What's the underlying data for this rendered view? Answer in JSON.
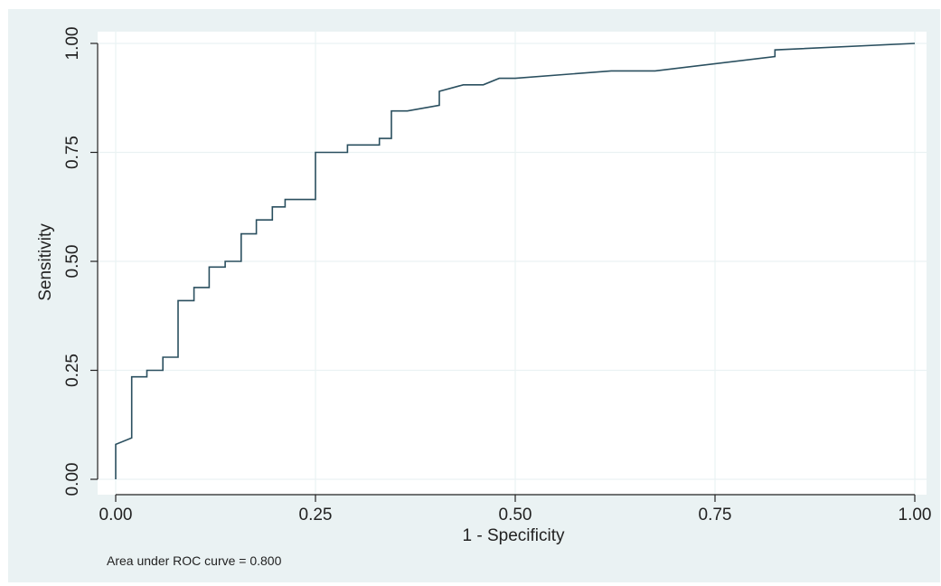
{
  "chart_data": {
    "type": "line",
    "xlabel": "1 - Specificity",
    "ylabel": "Sensitivity",
    "xlim": [
      0,
      1
    ],
    "ylim": [
      0,
      1
    ],
    "x_ticks": [
      0,
      0.25,
      0.5,
      0.75,
      1
    ],
    "y_ticks": [
      0,
      0.25,
      0.5,
      0.75,
      1
    ],
    "x_tick_labels": [
      "0.00",
      "0.25",
      "0.50",
      "0.75",
      "1.00"
    ],
    "y_tick_labels": [
      "0.00",
      "0.25",
      "0.50",
      "0.75",
      "1.00"
    ],
    "grid": true,
    "note": "Area under ROC curve = 0.800",
    "series": [
      {
        "values": [
          [
            0.0,
            0.0
          ],
          [
            0.0,
            0.08
          ],
          [
            0.02,
            0.095
          ],
          [
            0.02,
            0.235
          ],
          [
            0.039,
            0.235
          ],
          [
            0.039,
            0.25
          ],
          [
            0.059,
            0.25
          ],
          [
            0.059,
            0.28
          ],
          [
            0.078,
            0.28
          ],
          [
            0.078,
            0.41
          ],
          [
            0.098,
            0.41
          ],
          [
            0.098,
            0.44
          ],
          [
            0.117,
            0.44
          ],
          [
            0.117,
            0.487
          ],
          [
            0.137,
            0.487
          ],
          [
            0.137,
            0.5
          ],
          [
            0.157,
            0.5
          ],
          [
            0.157,
            0.563
          ],
          [
            0.176,
            0.563
          ],
          [
            0.176,
            0.595
          ],
          [
            0.196,
            0.595
          ],
          [
            0.196,
            0.625
          ],
          [
            0.212,
            0.625
          ],
          [
            0.212,
            0.642
          ],
          [
            0.25,
            0.642
          ],
          [
            0.25,
            0.75
          ],
          [
            0.29,
            0.75
          ],
          [
            0.29,
            0.767
          ],
          [
            0.33,
            0.767
          ],
          [
            0.33,
            0.782
          ],
          [
            0.345,
            0.782
          ],
          [
            0.345,
            0.845
          ],
          [
            0.365,
            0.845
          ],
          [
            0.405,
            0.858
          ],
          [
            0.405,
            0.89
          ],
          [
            0.435,
            0.905
          ],
          [
            0.46,
            0.905
          ],
          [
            0.48,
            0.92
          ],
          [
            0.5,
            0.92
          ],
          [
            0.62,
            0.937
          ],
          [
            0.675,
            0.937
          ],
          [
            0.825,
            0.97
          ],
          [
            0.825,
            0.985
          ],
          [
            1.0,
            1.0
          ]
        ],
        "color": "#2a4f5f"
      }
    ]
  },
  "colors": {
    "outer_background": "#eaf2f3",
    "plot_background": "#ffffff",
    "grid": "#eaf2f3",
    "curve": "#2a4f5f",
    "axis": "#222222"
  }
}
